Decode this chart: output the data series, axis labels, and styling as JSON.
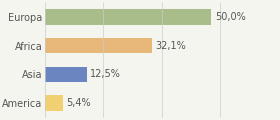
{
  "categories": [
    "Europa",
    "Africa",
    "Asia",
    "America"
  ],
  "values": [
    50.0,
    32.1,
    12.5,
    5.4
  ],
  "labels": [
    "50,0%",
    "32,1%",
    "12,5%",
    "5,4%"
  ],
  "bar_colors": [
    "#a8bd8a",
    "#e8b87a",
    "#6b85c0",
    "#f0d070"
  ],
  "background_color": "#f5f5f0",
  "xlim": [
    0,
    70
  ],
  "label_fontsize": 7,
  "category_fontsize": 7,
  "bar_height": 0.55,
  "grid_lines": [
    0,
    17.5,
    35.0,
    52.5,
    70.0
  ],
  "grid_color": "#cccccc"
}
